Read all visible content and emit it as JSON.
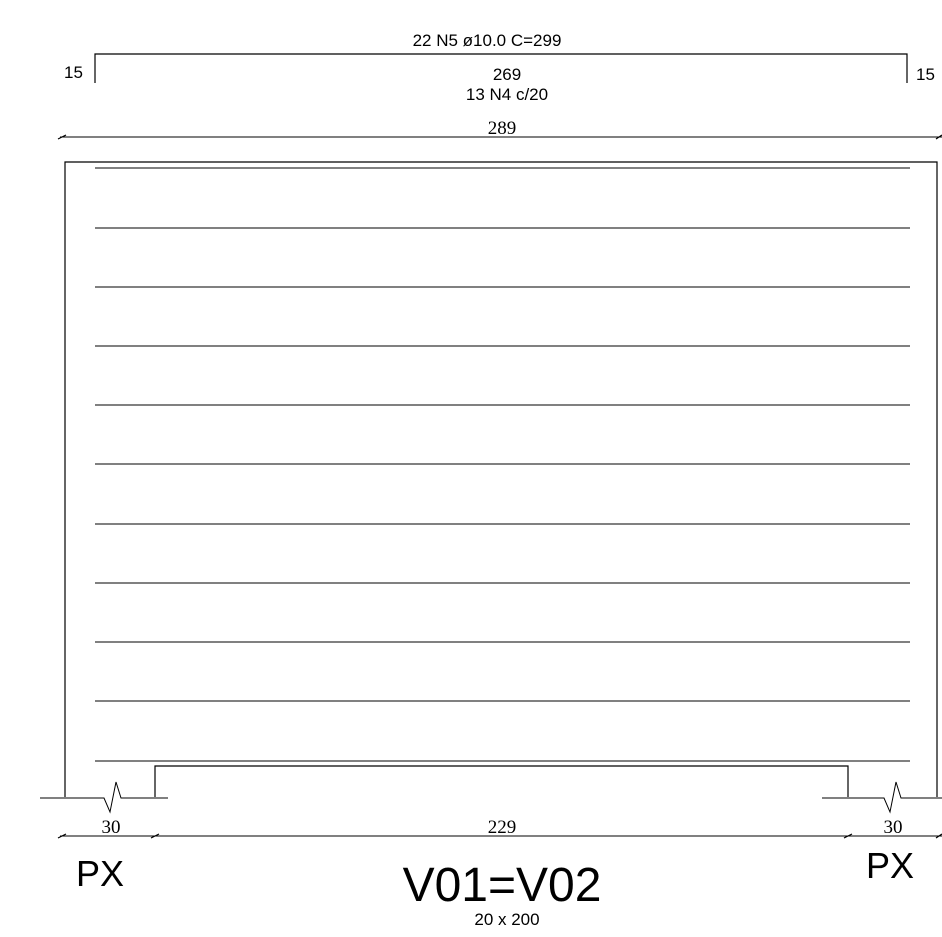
{
  "top_bar": {
    "label": "22 N5 ø10.0  C=299",
    "hook_left": "15",
    "hook_right": "15",
    "length": "269"
  },
  "stirrups": {
    "label": "13 N4 c/20",
    "count": 11
  },
  "overall_dimension": "289",
  "bottom_dimensions": {
    "left_support": "30",
    "clear_span": "229",
    "right_support": "30"
  },
  "supports": {
    "left_label": "PX",
    "right_label": "PX"
  },
  "beam": {
    "name": "V01=V02",
    "section": "20 x 200"
  }
}
